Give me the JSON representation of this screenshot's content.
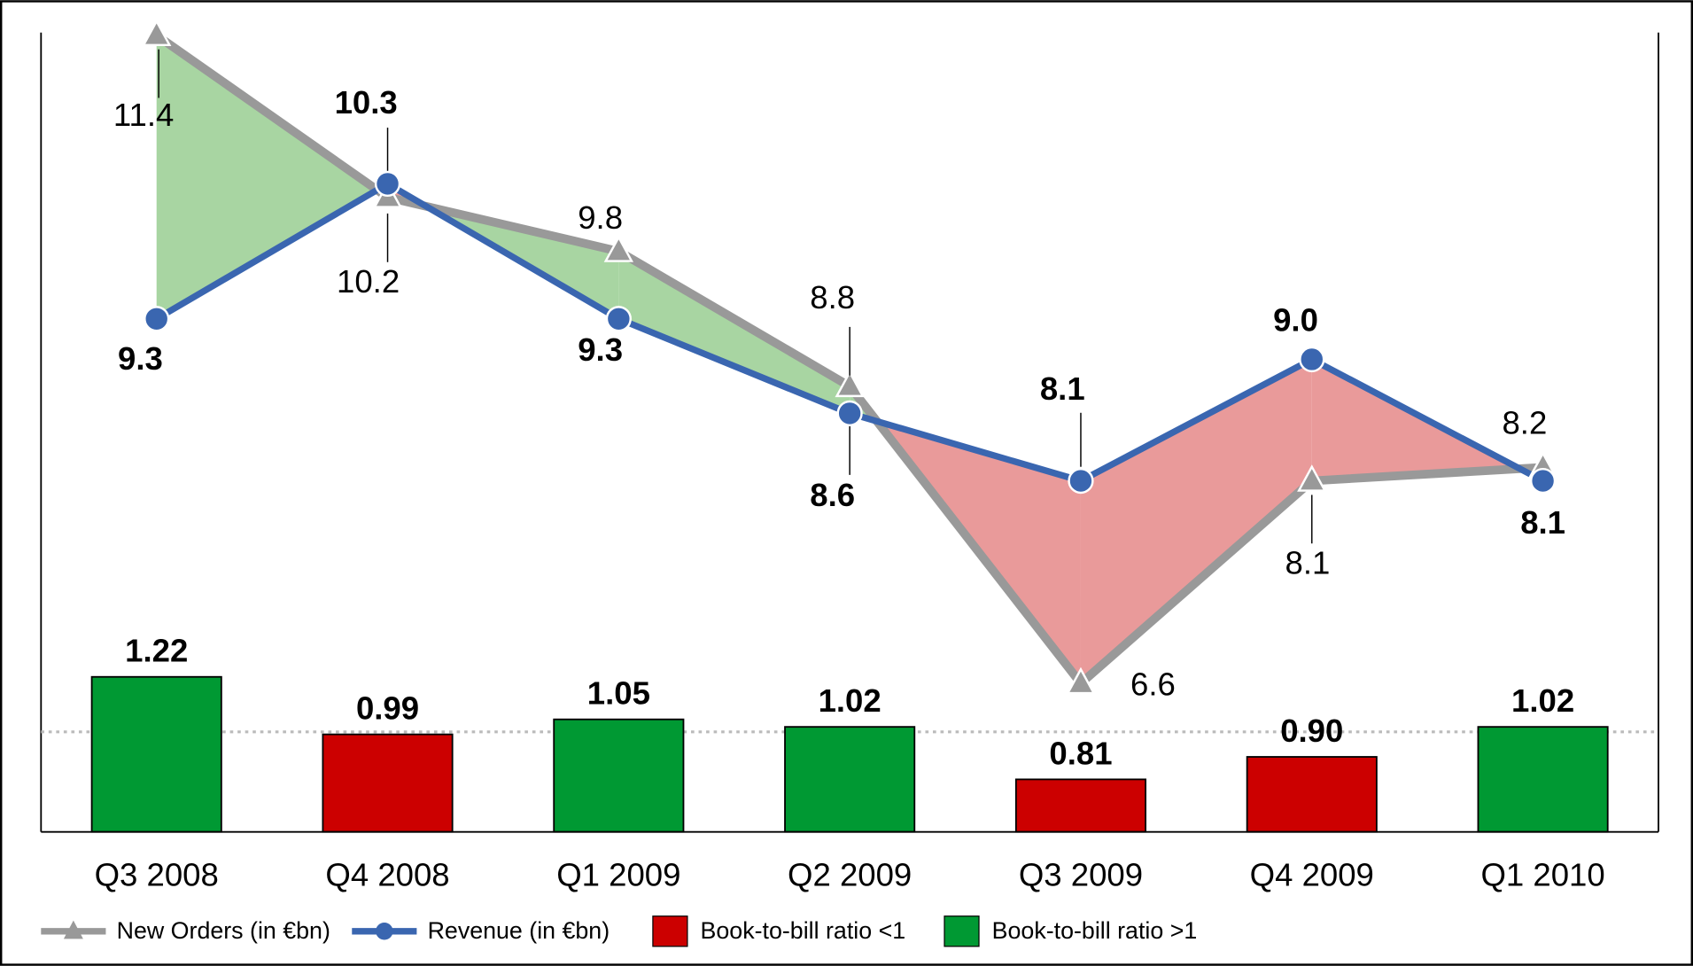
{
  "chart_data": {
    "type": "line_bar_combo",
    "categories": [
      "Q3 2008",
      "Q4 2008",
      "Q1 2009",
      "Q2 2009",
      "Q3 2009",
      "Q4 2009",
      "Q1 2010"
    ],
    "series": [
      {
        "name": "New Orders (in €bn)",
        "color": "#999999",
        "marker": "triangle",
        "bold_labels": false,
        "values": [
          11.4,
          10.2,
          9.8,
          8.8,
          6.6,
          8.1,
          8.2
        ],
        "value_labels": [
          "11.4",
          "10.2",
          "9.8",
          "8.8",
          "6.6",
          "8.1",
          "8.2"
        ]
      },
      {
        "name": "Revenue (in €bn)",
        "color": "#3a66b0",
        "marker": "circle",
        "bold_labels": true,
        "values": [
          9.3,
          10.3,
          9.3,
          8.6,
          8.1,
          9.0,
          8.1
        ],
        "value_labels": [
          "9.3",
          "10.3",
          "9.3",
          "8.6",
          "8.1",
          "9.0",
          "8.1"
        ]
      },
      {
        "name": "Book-to-bill ratio",
        "axis": "y2",
        "values": [
          1.22,
          0.99,
          1.05,
          1.02,
          0.81,
          0.9,
          1.02
        ],
        "value_labels": [
          "1.22",
          "0.99",
          "1.05",
          "1.02",
          "0.81",
          "0.90",
          "1.02"
        ]
      }
    ],
    "threshold": 1,
    "bar_colors": {
      "below": "#cc0000",
      "above": "#009933"
    },
    "bar_legend": [
      {
        "name": "Book-to-bill ratio <1",
        "color": "#cc0000"
      },
      {
        "name": "Book-to-bill ratio >1",
        "color": "#009933"
      }
    ],
    "fill_colors": {
      "above": "#a8d5a2",
      "below": "#e99a9a"
    },
    "ylim": [
      5.5,
      11.5
    ],
    "y2lim": [
      0.6,
      3.84
    ]
  }
}
